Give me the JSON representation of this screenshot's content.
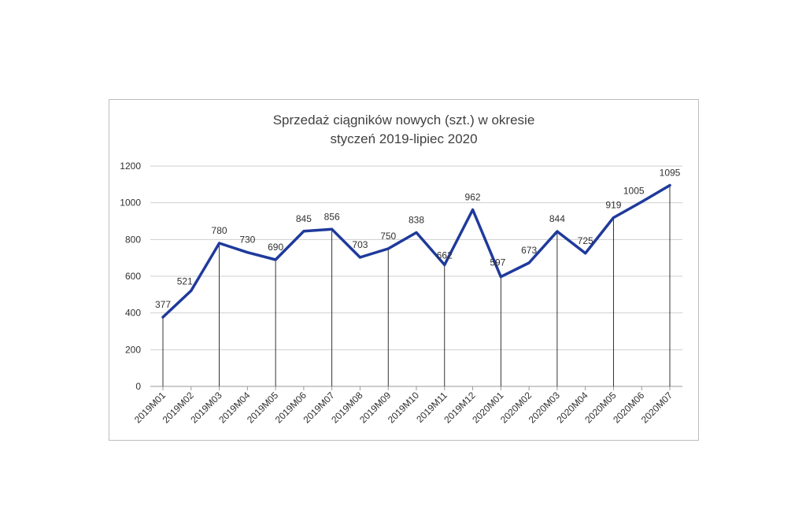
{
  "chart_data": {
    "type": "line",
    "title_line1": "Sprzedaż ciągników nowych (szt.) w okresie",
    "title_line2": "styczeń 2019-lipiec  2020",
    "xlabel": "",
    "ylabel": "",
    "ylim": [
      0,
      1200
    ],
    "yticks": [
      0,
      200,
      400,
      600,
      800,
      1000,
      1200
    ],
    "grid": true,
    "legend": "none",
    "categories": [
      "2019M01",
      "2019M02",
      "2019M03",
      "2019M04",
      "2019M05",
      "2019M06",
      "2019M07",
      "2019M08",
      "2019M09",
      "2019M10",
      "2019M11",
      "2019M12",
      "2020M01",
      "2020M02",
      "2020M03",
      "2020M04",
      "2020M05",
      "2020M06",
      "2020M07"
    ],
    "series": [
      {
        "values": [
          377,
          521,
          780,
          730,
          690,
          845,
          856,
          703,
          750,
          838,
          662,
          962,
          597,
          673,
          844,
          725,
          919,
          1005,
          1095
        ],
        "labels": [
          "377",
          "521",
          "780",
          "730",
          "690",
          "845",
          "856",
          "703",
          "750",
          "838",
          "662",
          "962",
          "597",
          "673",
          "844",
          "725",
          "919",
          "1005",
          "1095"
        ]
      }
    ],
    "colors": {
      "line": "#1f3a9c",
      "grid": "#cfcfcf",
      "axis": "#9a9a9a",
      "droplines": "#000000"
    }
  }
}
